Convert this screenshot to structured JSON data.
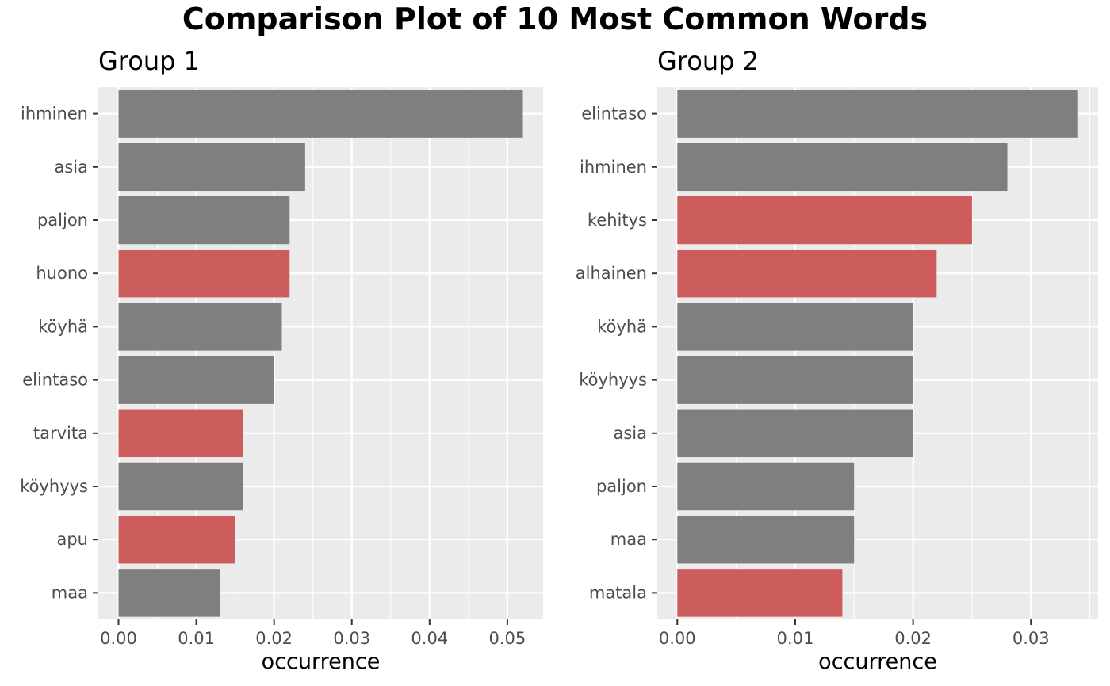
{
  "title": "Comparison Plot of 10 Most Common Words",
  "colors": {
    "panel_background": "#ebebeb",
    "grid": "#ffffff",
    "bar_default": "#7f7f7f",
    "bar_highlight": "#cd5c5c",
    "tick_text": "#4d4d4d"
  },
  "chart_data": [
    {
      "type": "bar",
      "orientation": "horizontal",
      "title": "Group 1",
      "xlabel": "occurrence",
      "ylabel": "",
      "xlim": [
        -0.0026,
        0.0546
      ],
      "xticks": [
        0.0,
        0.01,
        0.02,
        0.03,
        0.04,
        0.05
      ],
      "xtick_labels": [
        "0.00",
        "0.01",
        "0.02",
        "0.03",
        "0.04",
        "0.05"
      ],
      "grid": true,
      "categories": [
        "ihminen",
        "asia",
        "paljon",
        "huono",
        "köyhä",
        "elintaso",
        "tarvita",
        "köyhyys",
        "apu",
        "maa"
      ],
      "values": [
        0.052,
        0.024,
        0.022,
        0.022,
        0.021,
        0.02,
        0.016,
        0.016,
        0.015,
        0.013
      ],
      "highlighted": [
        false,
        false,
        false,
        true,
        false,
        false,
        true,
        false,
        true,
        false
      ]
    },
    {
      "type": "bar",
      "orientation": "horizontal",
      "title": "Group 2",
      "xlabel": "occurrence",
      "ylabel": "",
      "xlim": [
        -0.0017,
        0.0357
      ],
      "xticks": [
        0.0,
        0.01,
        0.02,
        0.03
      ],
      "xtick_labels": [
        "0.00",
        "0.01",
        "0.02",
        "0.03"
      ],
      "grid": true,
      "categories": [
        "elintaso",
        "ihminen",
        "kehitys",
        "alhainen",
        "köyhä",
        "köyhyys",
        "asia",
        "paljon",
        "maa",
        "matala"
      ],
      "values": [
        0.034,
        0.028,
        0.025,
        0.022,
        0.02,
        0.02,
        0.02,
        0.015,
        0.015,
        0.014
      ],
      "highlighted": [
        false,
        false,
        true,
        true,
        false,
        false,
        false,
        false,
        false,
        true
      ]
    }
  ]
}
